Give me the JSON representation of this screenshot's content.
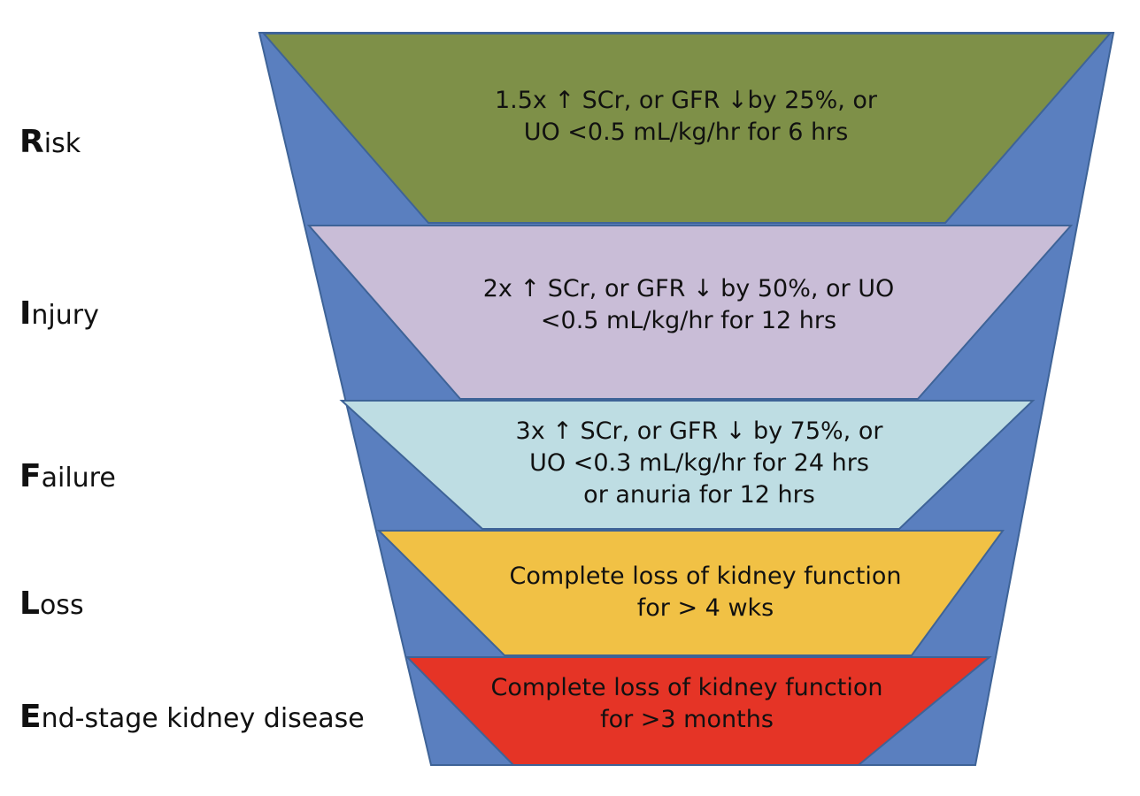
{
  "colors": {
    "funnel_blue": "#5a7fbf",
    "outline": "#3e6397",
    "risk": "#7e9048",
    "injury": "#c9bdd7",
    "failure": "#bedde3",
    "loss": "#f1c145",
    "esrd": "#e53426"
  },
  "stages": [
    {
      "initial": "R",
      "rest": "isk",
      "lines": [
        "1.5x ↑ SCr, or GFR ↓by 25%, or",
        "UO <0.5 mL/kg/hr for 6 hrs"
      ]
    },
    {
      "initial": "I",
      "rest": "njury",
      "lines": [
        "2x ↑ SCr, or GFR ↓ by 50%, or UO",
        "<0.5 mL/kg/hr for 12 hrs"
      ]
    },
    {
      "initial": "F",
      "rest": "ailure",
      "lines": [
        "3x ↑ SCr, or GFR ↓ by 75%, or",
        "UO <0.3 mL/kg/hr for 24 hrs",
        "or anuria for 12 hrs"
      ]
    },
    {
      "initial": "L",
      "rest": "oss",
      "lines": [
        "Complete loss of kidney function",
        "for > 4 wks"
      ]
    },
    {
      "initial": "E",
      "rest": "nd-stage kidney disease",
      "lines": [
        "Complete loss of kidney function",
        "for >3 months"
      ]
    }
  ]
}
